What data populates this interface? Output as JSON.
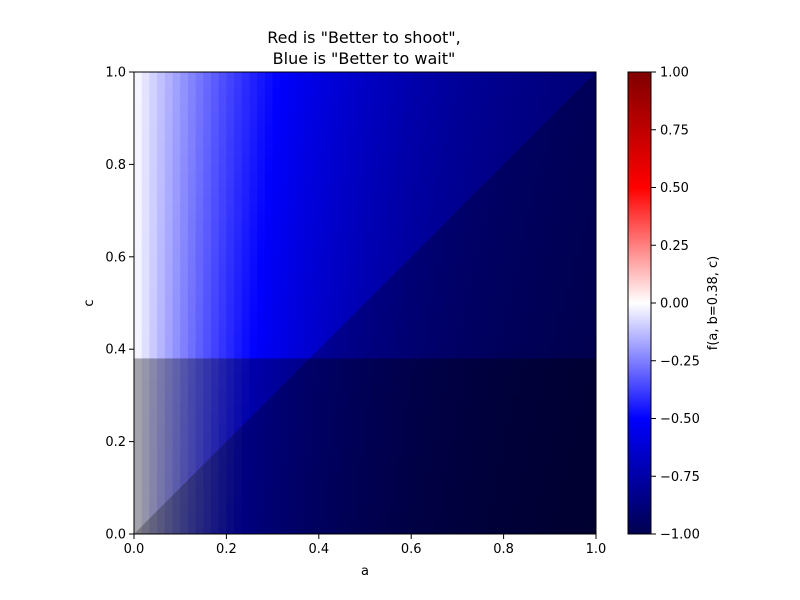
{
  "chart_data": {
    "type": "heatmap",
    "title_lines": [
      "Red is \"Better to shoot\",",
      "Blue is \"Better to wait\""
    ],
    "xlabel": "a",
    "ylabel": "c",
    "xlim": [
      0.0,
      1.0
    ],
    "ylim": [
      0.0,
      1.0
    ],
    "x_ticks": [
      0.0,
      0.2,
      0.4,
      0.6,
      0.8,
      1.0
    ],
    "x_tick_labels": [
      "0.0",
      "0.2",
      "0.4",
      "0.6",
      "0.8",
      "1.0"
    ],
    "y_ticks": [
      0.0,
      0.2,
      0.4,
      0.6,
      0.8,
      1.0
    ],
    "y_tick_labels": [
      "0.0",
      "0.2",
      "0.4",
      "0.6",
      "0.8",
      "1.0"
    ],
    "b_value": 0.38,
    "shaded_regions": [
      "c < b",
      "c < a"
    ],
    "colormap": "seismic",
    "colorbar": {
      "label": "f(a, b=0.38, c)",
      "vmin": -1.0,
      "vmax": 1.0,
      "ticks": [
        1.0,
        0.75,
        0.5,
        0.25,
        0.0,
        -0.25,
        -0.5,
        -0.75,
        -1.0
      ],
      "tick_labels": [
        "1.00",
        "0.75",
        "0.50",
        "0.25",
        "0.00",
        "−0.25",
        "−0.50",
        "−0.75",
        "−1.00"
      ],
      "colors": {
        "top": "#800000",
        "upper": "#ff0000",
        "mid": "#ffffff",
        "lower": "#0000ff",
        "bottom": "#000050"
      }
    },
    "field_samples": {
      "a": [
        0.0,
        1.0
      ],
      "c": [
        0.0,
        1.0
      ],
      "values_at_corners": {
        "a0_c1": 0.0,
        "a1_c1": -0.7,
        "a1_c0": -0.88
      }
    }
  }
}
